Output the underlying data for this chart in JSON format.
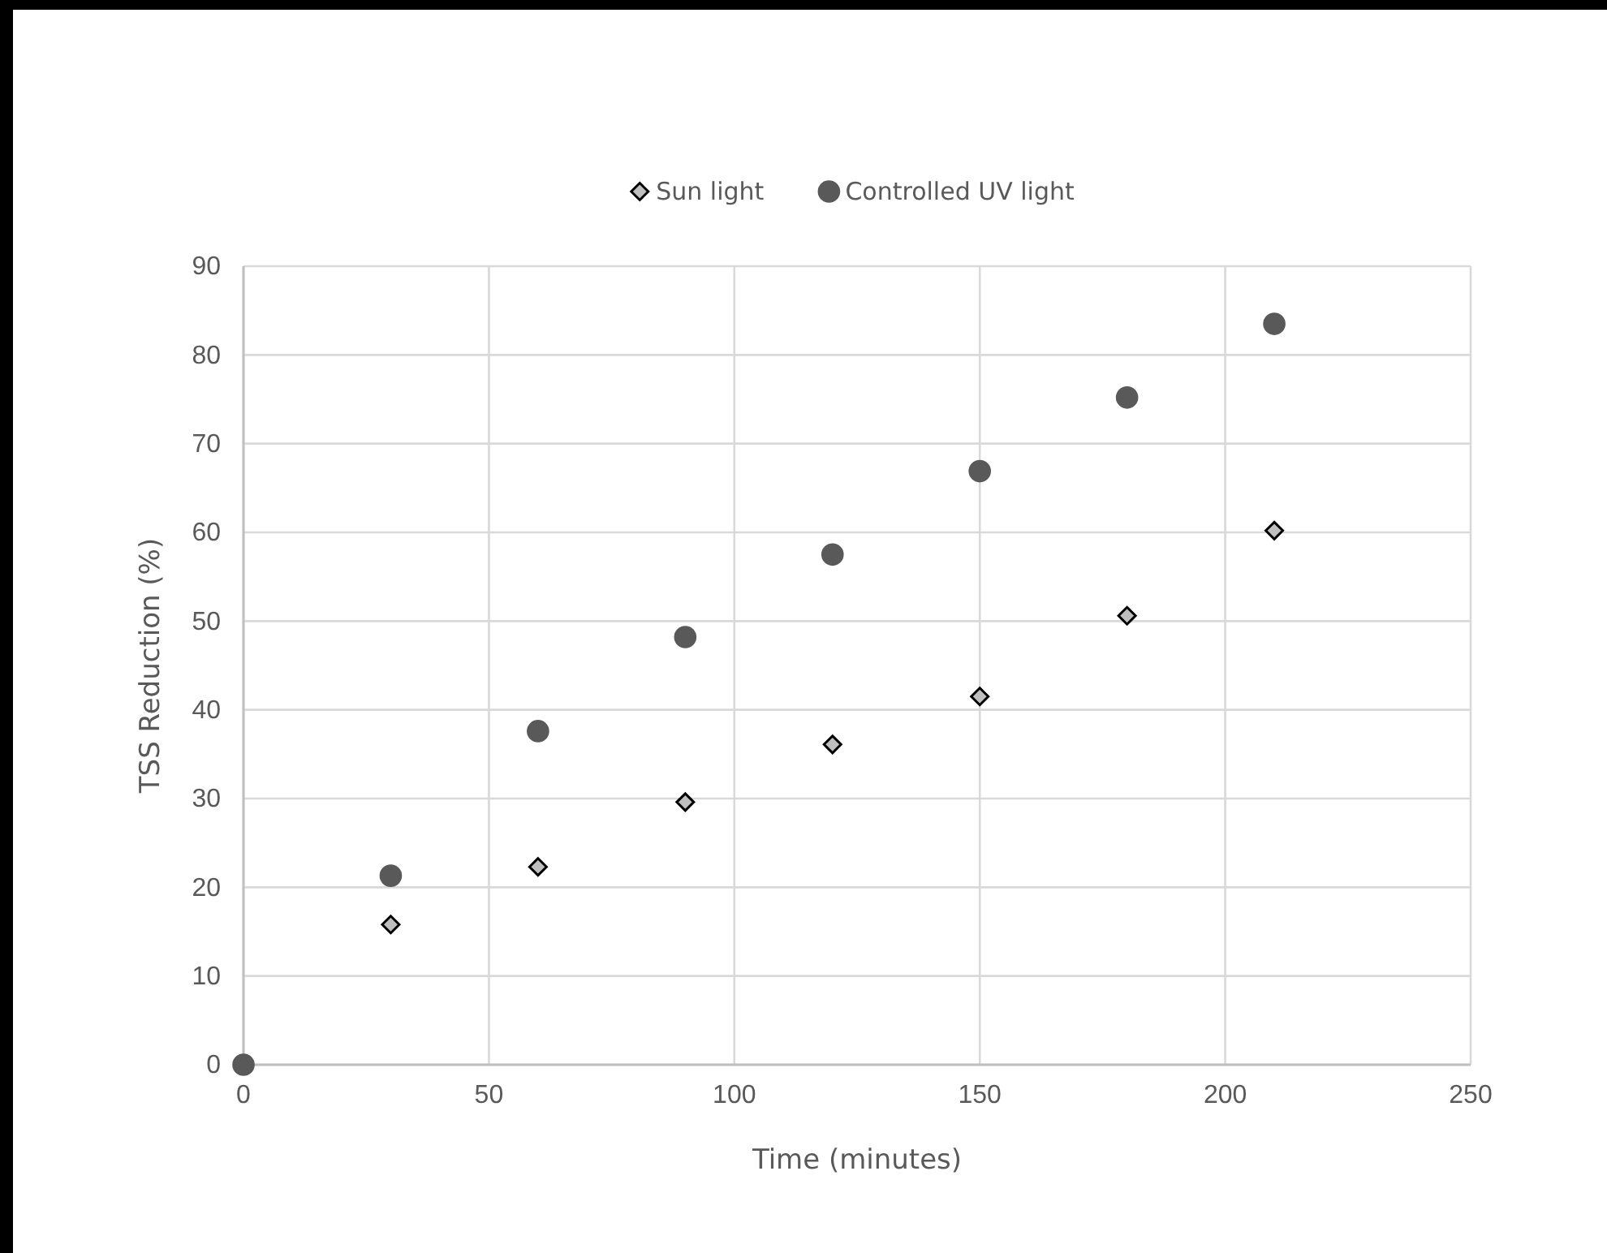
{
  "chart_data": {
    "type": "scatter",
    "xlabel": "Time (minutes)",
    "ylabel": "TSS Reduction (%)",
    "x": [
      0,
      30,
      60,
      90,
      120,
      150,
      180,
      210
    ],
    "series": [
      {
        "name": "Sun light",
        "color": "#bfbfbf",
        "marker": "diamond",
        "values": [
          null,
          15.8,
          22.3,
          29.6,
          36.1,
          41.5,
          50.6,
          60.2
        ]
      },
      {
        "name": "Controlled UV light",
        "color": "#595959",
        "marker": "circle",
        "values": [
          0,
          21.3,
          37.6,
          48.2,
          57.5,
          66.9,
          75.2,
          83.5
        ]
      }
    ],
    "xlim": [
      0,
      250
    ],
    "xticks": [
      0,
      50,
      100,
      150,
      200,
      250
    ],
    "ylim": [
      0,
      90
    ],
    "yticks": [
      0,
      10,
      20,
      30,
      40,
      50,
      60,
      70,
      80,
      90
    ],
    "grid": true,
    "legend": "top"
  }
}
